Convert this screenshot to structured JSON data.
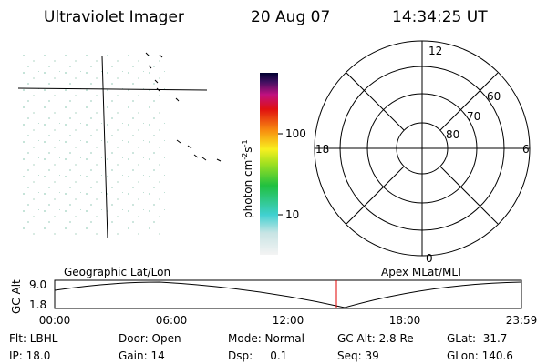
{
  "header": {
    "title": "Ultraviolet Imager",
    "date": "20 Aug 07",
    "time": "14:34:25 UT"
  },
  "colorbar": {
    "label": "photon cm",
    "exp1": "-2",
    "unit2": "s",
    "exp2": "-1",
    "ticks": [
      "100",
      "10"
    ]
  },
  "polar": {
    "labels": {
      "top": "12",
      "left": "18",
      "right": "6",
      "bottom": "0"
    },
    "rings": [
      "60",
      "70",
      "80"
    ]
  },
  "altitude_plot": {
    "left_title": "Geographic Lat/Lon",
    "right_title": "Apex MLat/MLT",
    "y_label": "GC Alt",
    "y_ticks": [
      "9.0",
      "1.8"
    ],
    "x_ticks": [
      "00:00",
      "06:00",
      "12:00",
      "18:00",
      "23:59"
    ]
  },
  "footer": {
    "rows": [
      [
        "Flt: LBHL",
        "Door: Open",
        "Mode: Normal",
        "GC Alt: 2.8 Re",
        "GLat:  31.7"
      ],
      [
        "IP: 18.0",
        "Gain: 14",
        "Dsp:     0.1",
        "Seq: 39",
        "GLon: 140.6"
      ]
    ]
  }
}
